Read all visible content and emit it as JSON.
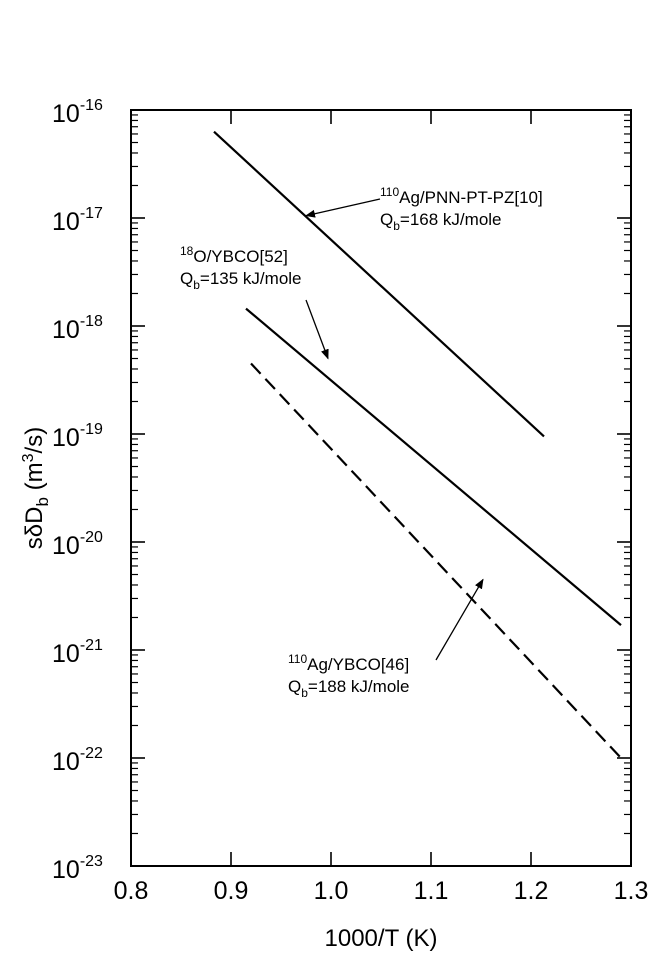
{
  "chart_data": {
    "type": "line",
    "xlabel": "1000/T (K)",
    "ylabel": "sδD",
    "ylabel_sub": "b",
    "ylabel_units_pre": " (m",
    "ylabel_units_sup": "3",
    "ylabel_units_post": "/s)",
    "y_scale": "log",
    "xlim": [
      0.8,
      1.3
    ],
    "ylim": [
      1e-23,
      1e-16
    ],
    "x_ticks": [
      "0.8",
      "0.9",
      "1.0",
      "1.1",
      "1.2",
      "1.3"
    ],
    "y_ticks": [
      {
        "base": "10",
        "exp": "-16"
      },
      {
        "base": "10",
        "exp": "-17"
      },
      {
        "base": "10",
        "exp": "-18"
      },
      {
        "base": "10",
        "exp": "-19"
      },
      {
        "base": "10",
        "exp": "-20"
      },
      {
        "base": "10",
        "exp": "-21"
      },
      {
        "base": "10",
        "exp": "-22"
      },
      {
        "base": "10",
        "exp": "-23"
      }
    ],
    "grid": false,
    "series": [
      {
        "x": [
          0.883,
          1.213
        ],
        "y": [
          6.3e-17,
          9.5e-20
        ],
        "style": "solid"
      },
      {
        "x": [
          0.915,
          1.29
        ],
        "y": [
          1.45e-18,
          1.7e-21
        ],
        "style": "solid"
      },
      {
        "x": [
          0.92,
          1.29
        ],
        "y": [
          4.5e-19,
          1e-22
        ],
        "style": "dashed"
      }
    ],
    "annotations": [
      {
        "line1_sup": "110",
        "line1_text": "Ag/PNN-PT-PZ[10]",
        "line2_pre": "Q",
        "line2_sub": "b",
        "line2_post": "=168 kJ/mole",
        "arrow_to": {
          "x": 0.975,
          "y": 1.05e-17
        }
      },
      {
        "line1_sup": "18",
        "line1_text": "O/YBCO[52]",
        "line2_pre": "Q",
        "line2_sub": "b",
        "line2_post": "=135 kJ/mole",
        "arrow_to": {
          "x": 0.997,
          "y": 5e-19
        }
      },
      {
        "line1_sup": "110",
        "line1_text": "Ag/YBCO[46]",
        "line2_pre": "Q",
        "line2_sub": "b",
        "line2_post": "=188 kJ/mole",
        "arrow_to": {
          "x": 1.152,
          "y": 4.5e-21
        }
      }
    ]
  }
}
